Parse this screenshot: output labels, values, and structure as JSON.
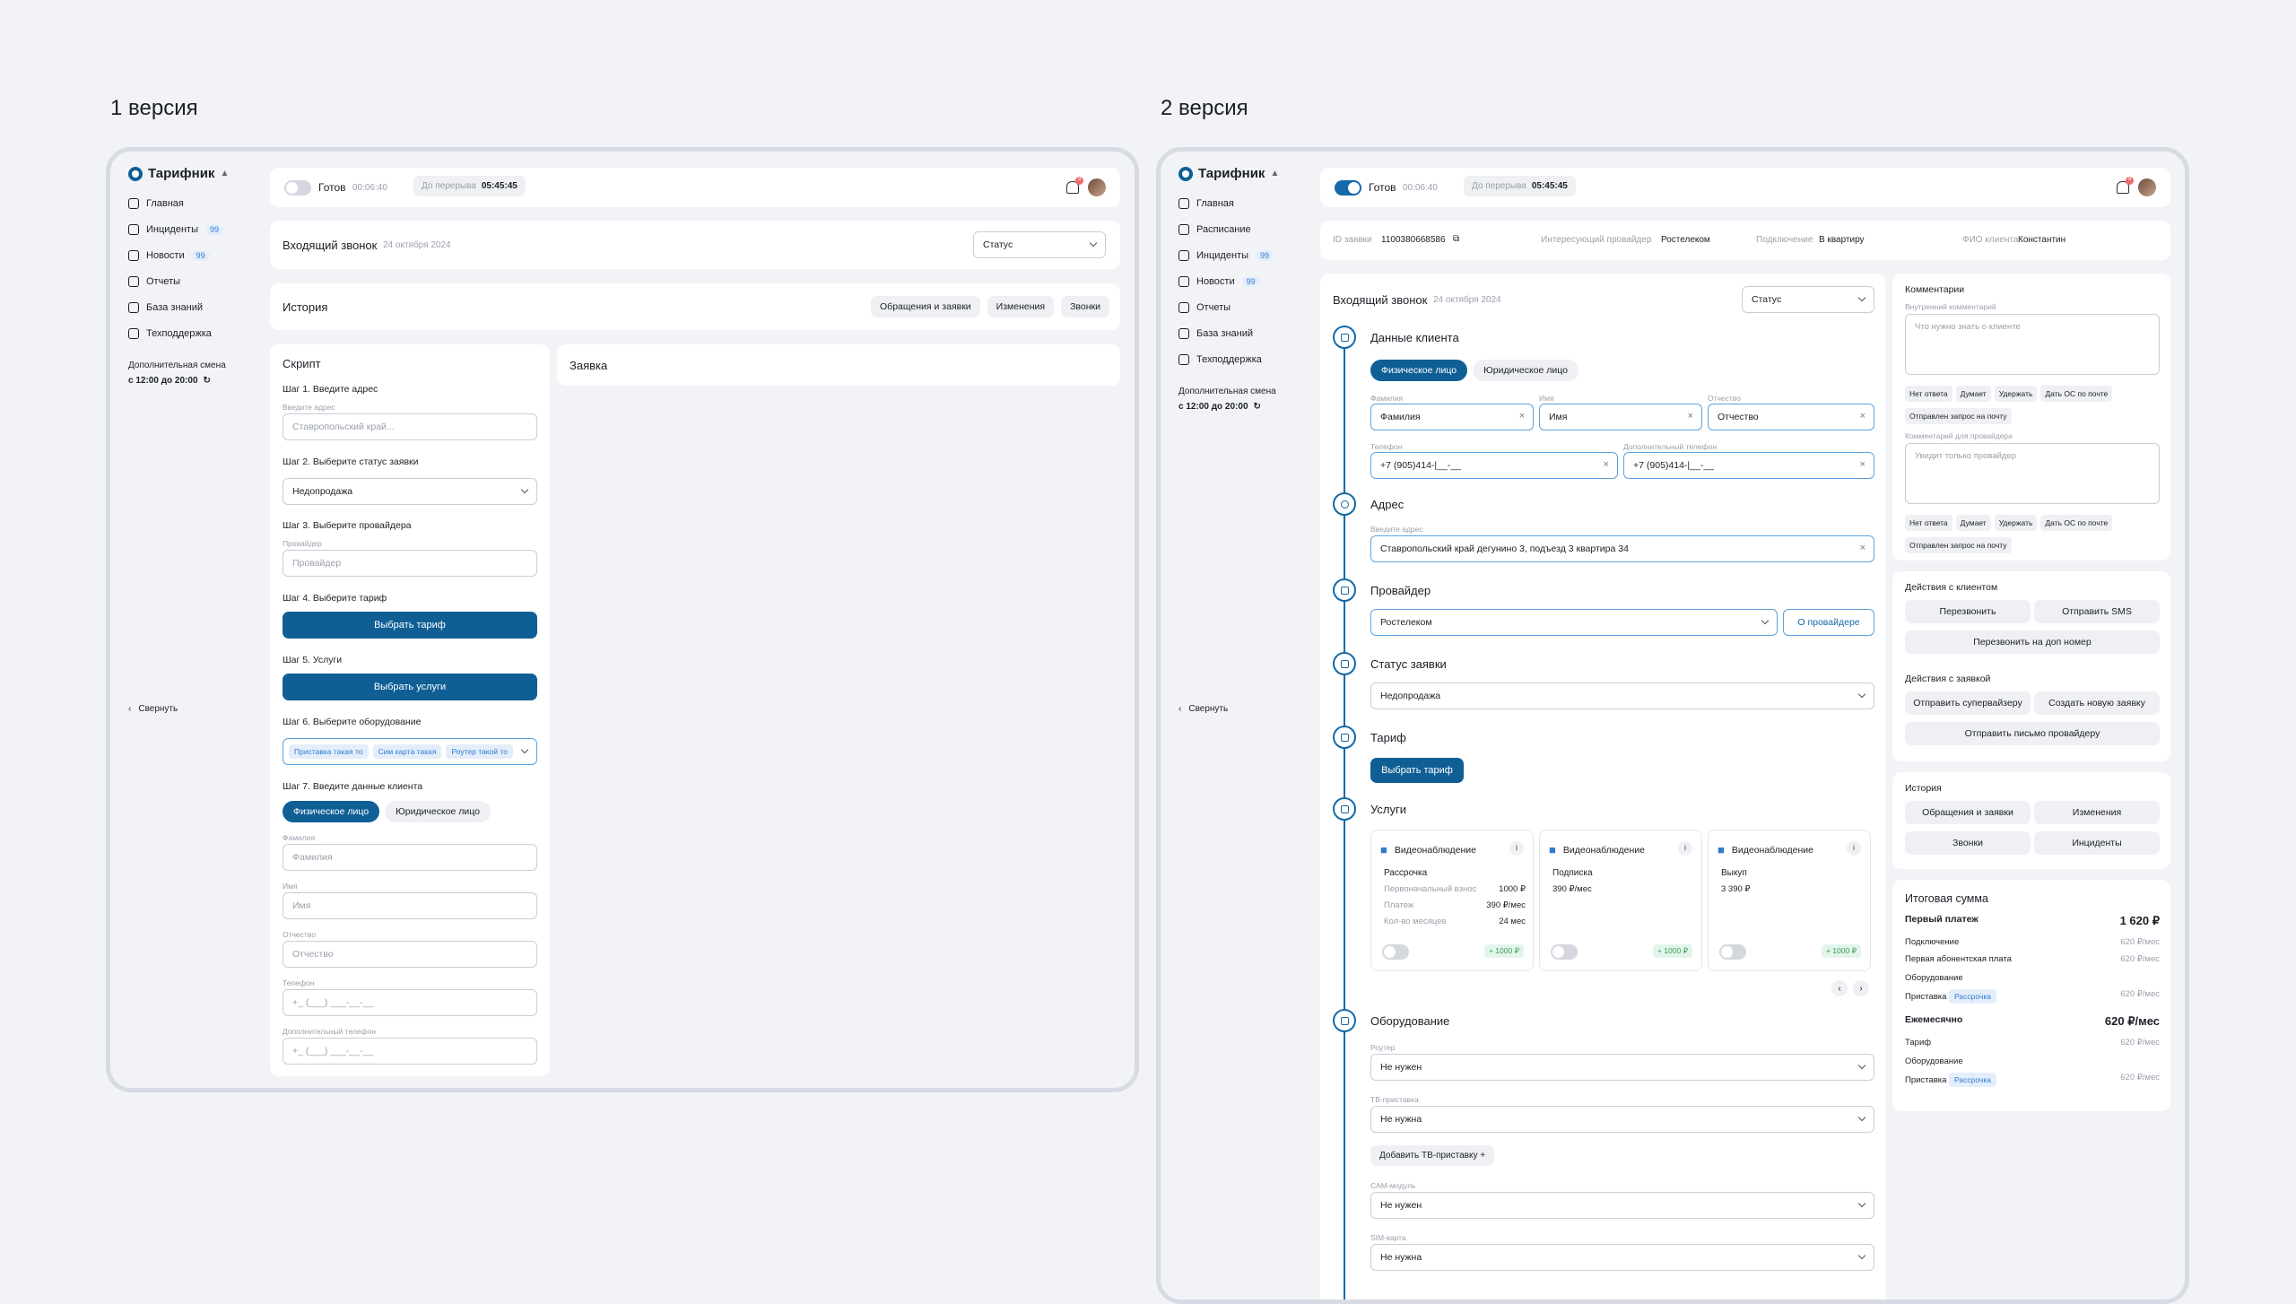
{
  "v1": {
    "title": "1 версия",
    "logo": "Тарифник",
    "nav": [
      {
        "label": "Главная",
        "icon": "home-icon"
      },
      {
        "label": "Инциденты",
        "badge": "99",
        "icon": "layers-icon"
      },
      {
        "label": "Новости",
        "badge": "99",
        "icon": "grid-icon"
      },
      {
        "label": "Отчеты",
        "icon": "chart-icon"
      },
      {
        "label": "База знаний",
        "icon": "book-icon"
      },
      {
        "label": "Техподдержка",
        "icon": "phone-icon"
      }
    ],
    "shift_label": "Дополнительная смена",
    "shift_time": "с 12:00 до 20:00",
    "collapse": "Свернуть",
    "status": "Готов",
    "status_time": "00:06:40",
    "break_label": "До перерыва",
    "break_time": "05:45:45",
    "bell_count": "9",
    "call_title": "Входящий звонок",
    "call_date": "24 октября 2024",
    "status_select": "Статус",
    "history_title": "История",
    "history_tabs": [
      "Обращения и заявки",
      "Изменения",
      "Звонки"
    ],
    "script_title": "Скрипт",
    "order_title": "Заявка",
    "step1": "Шаг 1. Введите адрес",
    "step1_label": "Введите адрес",
    "step1_ph": "Ставропольский край...",
    "step2": "Шаг 2. Выберите статус заявки",
    "step2_val": "Недопродажа",
    "step3": "Шаг 3. Выберите провайдера",
    "step3_label": "Провайдер",
    "step3_ph": "Провайдер",
    "step4": "Шаг 4. Выберите тариф",
    "step4_btn": "Выбрать тариф",
    "step5": "Шаг 5. Услуги",
    "step5_btn": "Выбрать услуги",
    "step6": "Шаг 6. Выберите оборудование",
    "step6_chips": [
      "Приставка такая то",
      "Сим карта такая",
      "Роутер такой то"
    ],
    "step7": "Шаг 7. Введите данные клиента",
    "person_tabs": [
      "Физическое лицо",
      "Юридическое лицо"
    ],
    "fields": [
      {
        "label": "Фамилия",
        "ph": "Фамилия"
      },
      {
        "label": "Имя",
        "ph": "Имя"
      },
      {
        "label": "Отчество",
        "ph": "Отчество"
      },
      {
        "label": "Телефон",
        "ph": "+_ (___) ___-__-__"
      },
      {
        "label": "Дополнительный телефон",
        "ph": "+_ (___) ___-__-__"
      }
    ]
  },
  "v2": {
    "title": "2 версия",
    "logo": "Тарифник",
    "nav": [
      {
        "label": "Главная",
        "icon": "home-icon"
      },
      {
        "label": "Расписание",
        "icon": "calendar-icon"
      },
      {
        "label": "Инциденты",
        "badge": "99",
        "icon": "layers-icon"
      },
      {
        "label": "Новости",
        "badge": "99",
        "icon": "grid-icon"
      },
      {
        "label": "Отчеты",
        "icon": "chart-icon"
      },
      {
        "label": "База знаний",
        "icon": "book-icon"
      },
      {
        "label": "Техподдержка",
        "icon": "phone-icon"
      }
    ],
    "shift_label": "Дополнительная смена",
    "shift_time": "с 12:00 до 20:00",
    "collapse": "Свернуть",
    "status": "Готов",
    "status_time": "00:06:40",
    "break_label": "До перерыва",
    "break_time": "05:45:45",
    "bell_count": "9",
    "info": {
      "id_label": "ID заявки",
      "id_val": "1100380668586",
      "prov_label": "Интересующий провайдер",
      "prov_val": "Ростелеком",
      "conn_label": "Подключение",
      "conn_val": "В квартиру",
      "fio_label": "ФИО клиента",
      "fio_val": "Константин"
    },
    "call_title": "Входящий звонок",
    "call_date": "24 октября 2024",
    "status_select": "Статус",
    "client": {
      "title": "Данные клиента",
      "tabs": [
        "Физическое лицо",
        "Юридическое лицо"
      ],
      "surname_label": "Фамилия",
      "surname": "Фамилия",
      "name_label": "Имя",
      "name": "Имя",
      "patr_label": "Отчество",
      "patr": "Отчество",
      "phone_label": "Телефон",
      "phone": "+7 (905)414-|__-__",
      "phone2_label": "Дополнительный телефон",
      "phone2": "+7 (905)414-|__-__"
    },
    "address": {
      "title": "Адрес",
      "label": "Введите адрес",
      "value": "Ставропольский край дегунино 3, подъезд 3 квартира 34"
    },
    "provider": {
      "title": "Провайдер",
      "value": "Ростелеком",
      "btn": "О провайдере"
    },
    "order_status": {
      "title": "Статус заявки",
      "value": "Недопродажа"
    },
    "tariff": {
      "title": "Тариф",
      "btn": "Выбрать тариф"
    },
    "services": {
      "title": "Услуги",
      "cards": [
        {
          "name": "Видеонаблюдение",
          "type": "Рассрочка",
          "rows": [
            {
              "k": "Первоначальный взнос",
              "v": "1000 ₽"
            },
            {
              "k": "Платеж",
              "v": "390 ₽/мес"
            },
            {
              "k": "Кол-во месяцев",
              "v": "24 мес"
            }
          ],
          "price": "+ 1000 ₽"
        },
        {
          "name": "Видеонаблюдение",
          "type": "Подписка",
          "rows": [
            {
              "k": "390 ₽/мес",
              "v": ""
            }
          ],
          "price": "+ 1000 ₽"
        },
        {
          "name": "Видеонаблюдение",
          "type": "Выкуп",
          "rows": [
            {
              "k": "3 390 ₽",
              "v": ""
            }
          ],
          "price": "+ 1000 ₽"
        }
      ]
    },
    "equipment": {
      "title": "Оборудование",
      "router_label": "Роутер",
      "router": "Не нужен",
      "tv_label": "ТВ-приставка",
      "tv": "Не нужна",
      "add_tv": "Добавить ТВ-приставку",
      "cam_label": "CAM-модуль",
      "cam": "Не нужен",
      "sim_label": "SIM-карта",
      "sim": "Не нужна"
    },
    "comments": {
      "title": "Комментарии",
      "inner_label": "Внутренний комментарий",
      "inner_ph": "Что нужно знать о клиенте",
      "tags": [
        "Нет ответа",
        "Думает",
        "Удержать",
        "Дать ОС по почте",
        "Отправлен запрос на почту"
      ],
      "prov_label": "Комментарий для провайдера",
      "prov_ph": "Увидит только провайдер"
    },
    "client_actions": {
      "title": "Действия с клиентом",
      "btns": [
        "Перезвонить",
        "Отправить SMS",
        "Перезвонить на доп номер"
      ]
    },
    "order_actions": {
      "title": "Действия с заявкой",
      "btns": [
        "Отправить супервайзеру",
        "Создать новую заявку",
        "Отправить письмо провайдеру"
      ]
    },
    "history": {
      "title": "История",
      "btns": [
        "Обращения и заявки",
        "Изменения",
        "Звонки",
        "Инциденты"
      ]
    },
    "total": {
      "title": "Итоговая сумма",
      "first_label": "Первый платеж",
      "first_val": "1 620 ₽",
      "conn": "Подключение",
      "conn_v": "620 ₽/мес",
      "sub": "Первая абонентская плата",
      "sub_v": "620 ₽/мес",
      "eq": "Оборудование",
      "box": "Приставка",
      "box_chip": "Рассрочка",
      "box_v": "620 ₽/мес",
      "monthly_label": "Ежемесячно",
      "monthly_val": "620 ₽/мес",
      "tariff": "Тариф",
      "tariff_v": "620 ₽/мес",
      "eq2": "Оборудование",
      "box2": "Приставка",
      "box2_chip": "Рассрочка",
      "box2_v": "620 ₽/мес"
    }
  }
}
